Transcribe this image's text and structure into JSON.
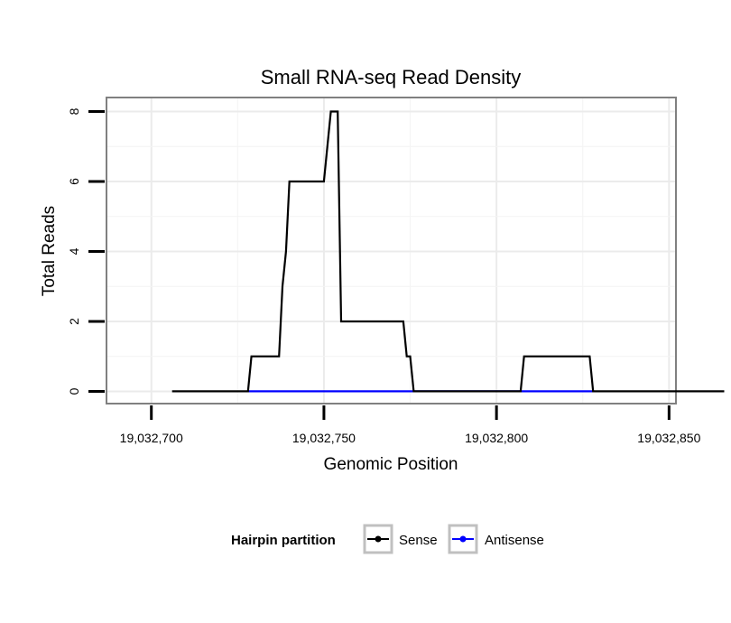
{
  "chart_data": {
    "type": "line",
    "title": "Small RNA-seq Read Density",
    "xlabel": "Genomic Position",
    "ylabel": "Total Reads",
    "xlim": [
      19032687,
      19032852
    ],
    "ylim": [
      -0.35,
      8.4
    ],
    "x_ticks": [
      19032700,
      19032750,
      19032800,
      19032850
    ],
    "x_tick_labels": [
      "19,032,700",
      "19,032,750",
      "19,032,800",
      "19,032,850"
    ],
    "y_ticks": [
      0,
      2,
      4,
      6,
      8
    ],
    "y_tick_labels": [
      "0",
      "2",
      "4",
      "6",
      "8"
    ],
    "grid": true,
    "legend_position": "bottom",
    "legend_title": "Hairpin partition",
    "series": [
      {
        "name": "Sense",
        "color": "#000000",
        "x": [
          19032706,
          19032728,
          19032729,
          19032737,
          19032738,
          19032739,
          19032740,
          19032750,
          19032752,
          19032754,
          19032755,
          19032765,
          19032773,
          19032774,
          19032775,
          19032776,
          19032778,
          19032807,
          19032808,
          19032827,
          19032828,
          19032866
        ],
        "y": [
          0,
          0,
          1,
          1,
          3,
          4,
          6,
          6,
          8,
          8,
          2,
          2,
          2,
          1,
          1,
          0,
          0,
          0,
          1,
          1,
          0,
          0
        ]
      },
      {
        "name": "Antisense",
        "color": "#0000ff",
        "x": [
          19032728,
          19032776,
          19032807,
          19032828
        ],
        "y": [
          0,
          0,
          0,
          0
        ]
      }
    ]
  }
}
